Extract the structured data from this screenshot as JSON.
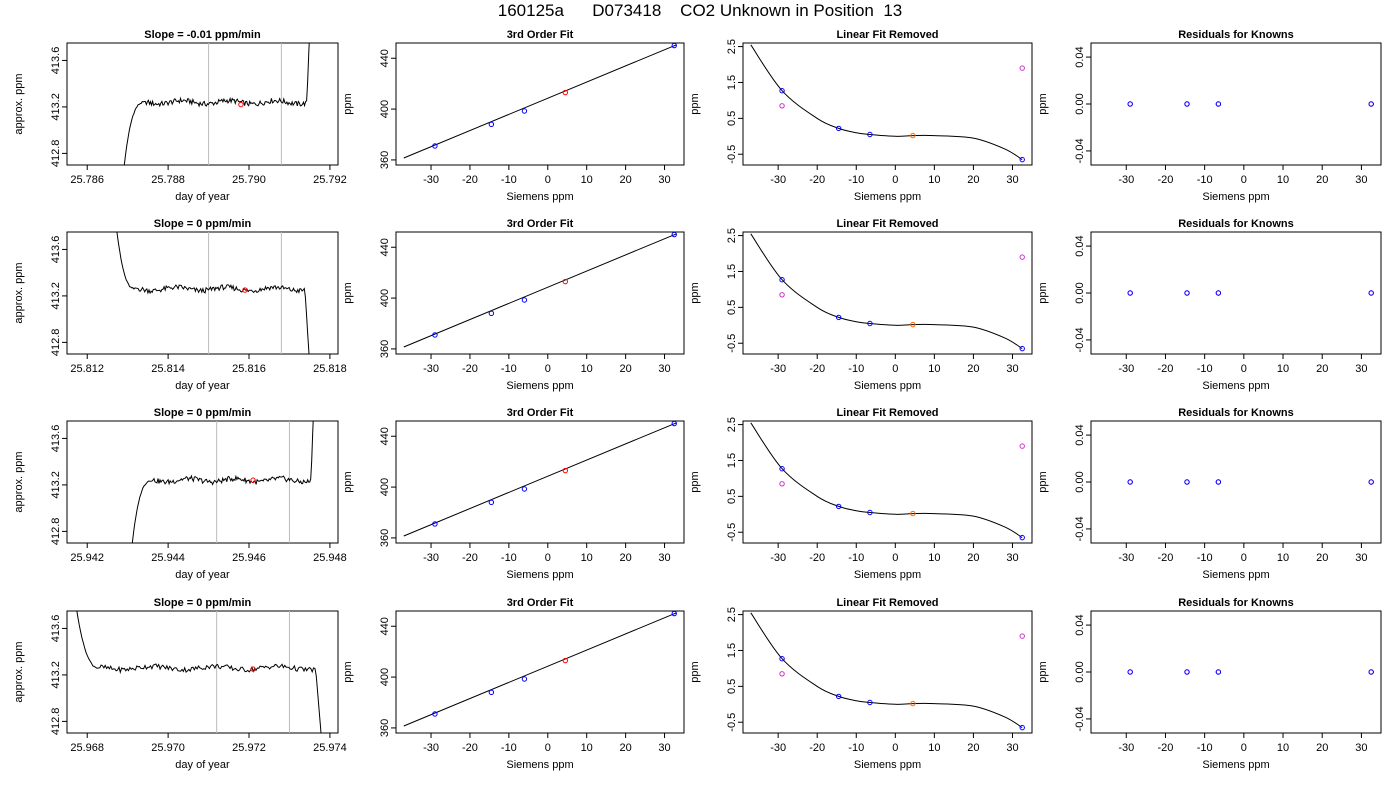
{
  "suptitle": "160125a      D073418    CO2 Unknown in Position  13",
  "colors": {
    "curve": "#000000",
    "known_point": "#0000ff",
    "unknown_point": "#ff0000",
    "unknown_point_lfr": "#ff6600",
    "residual_raw": "#cc33cc",
    "ref_line": "#bbbbbb"
  },
  "chart_data": [
    {
      "type": "line",
      "row": 1,
      "plot": "trace",
      "title": "Slope =  -0.01  ppm/min",
      "xlabel": "day of year",
      "ylabel": "approx. ppm",
      "xlim": [
        25.7855,
        25.7922
      ],
      "ylim": [
        412.7,
        413.75
      ],
      "xticks": [
        25.786,
        25.788,
        25.79,
        25.792
      ],
      "xtick_labels": [
        "25.786",
        "25.788",
        "25.790",
        "25.792"
      ],
      "yticks": [
        412.8,
        413.2,
        413.6
      ],
      "ytick_labels": [
        "412.8",
        "413.2",
        "413.6"
      ],
      "vlines": [
        25.789,
        25.7908
      ],
      "marker": {
        "x": 25.7898,
        "y": 413.22
      },
      "shape": "rise",
      "x_start": 25.7869,
      "x_end": 25.7915,
      "plateau": 413.24
    },
    {
      "type": "line",
      "row": 2,
      "plot": "trace",
      "title": "Slope =  0  ppm/min",
      "xlabel": "day of year",
      "ylabel": "approx. ppm",
      "xlim": [
        25.8115,
        25.8182
      ],
      "ylim": [
        412.7,
        413.75
      ],
      "xticks": [
        25.812,
        25.814,
        25.816,
        25.818
      ],
      "xtick_labels": [
        "25.812",
        "25.814",
        "25.816",
        "25.818"
      ],
      "yticks": [
        412.8,
        413.2,
        413.6
      ],
      "ytick_labels": [
        "412.8",
        "413.2",
        "413.6"
      ],
      "vlines": [
        25.815,
        25.8168
      ],
      "marker": {
        "x": 25.8159,
        "y": 413.25
      },
      "shape": "fall",
      "x_start": 25.8127,
      "x_end": 25.8175,
      "plateau": 413.26
    },
    {
      "type": "line",
      "row": 3,
      "plot": "trace",
      "title": "Slope =  0  ppm/min",
      "xlabel": "day of year",
      "ylabel": "approx. ppm",
      "xlim": [
        25.9415,
        25.9482
      ],
      "ylim": [
        412.7,
        413.75
      ],
      "xticks": [
        25.942,
        25.944,
        25.946,
        25.948
      ],
      "xtick_labels": [
        "25.942",
        "25.944",
        "25.946",
        "25.948"
      ],
      "yticks": [
        412.8,
        413.2,
        413.6
      ],
      "ytick_labels": [
        "412.8",
        "413.2",
        "413.6"
      ],
      "vlines": [
        25.9452,
        25.947
      ],
      "marker": {
        "x": 25.9461,
        "y": 413.24
      },
      "shape": "rise",
      "x_start": 25.9431,
      "x_end": 25.9476,
      "plateau": 413.24
    },
    {
      "type": "line",
      "row": 4,
      "plot": "trace",
      "title": "Slope =  0  ppm/min",
      "xlabel": "day of year",
      "ylabel": "approx. ppm",
      "xlim": [
        25.9675,
        25.9742
      ],
      "ylim": [
        412.7,
        413.75
      ],
      "xticks": [
        25.968,
        25.97,
        25.972,
        25.974
      ],
      "xtick_labels": [
        "25.968",
        "25.970",
        "25.972",
        "25.974"
      ],
      "yticks": [
        412.8,
        413.2,
        413.6
      ],
      "ytick_labels": [
        "412.8",
        "413.2",
        "413.6"
      ],
      "vlines": [
        25.9712,
        25.973
      ],
      "marker": {
        "x": 25.9721,
        "y": 413.25
      },
      "shape": "fall",
      "x_start": 25.9677,
      "x_end": 25.9738,
      "plateau": 413.26
    },
    {
      "type": "scatter",
      "plot": "fit",
      "title": "3rd Order Fit",
      "xlabel": "Siemens ppm",
      "ylabel": "ppm",
      "xlim": [
        -39,
        35
      ],
      "ylim": [
        356,
        452
      ],
      "xticks": [
        -30,
        -20,
        -10,
        0,
        10,
        20,
        30
      ],
      "xtick_labels": [
        "-30",
        "-20",
        "-10",
        "0",
        "10",
        "20",
        "30"
      ],
      "yticks": [
        360,
        400,
        440
      ],
      "ytick_labels": [
        "360",
        "400",
        "440"
      ],
      "known_points": [
        {
          "x": -29,
          "y": 371
        },
        {
          "x": -14.5,
          "y": 388
        },
        {
          "x": -6,
          "y": 398.5
        },
        {
          "x": 32.5,
          "y": 450
        }
      ],
      "unknown_points": [
        {
          "x": 4.5,
          "y": 413
        }
      ],
      "fit_line": {
        "x": [
          -37,
          33
        ],
        "y": [
          361.5,
          450.5
        ]
      }
    },
    {
      "type": "scatter",
      "plot": "linfit_removed",
      "title": "Linear Fit Removed",
      "xlabel": "Siemens ppm",
      "ylabel": "ppm",
      "xlim": [
        -39,
        35
      ],
      "ylim": [
        -0.8,
        2.6
      ],
      "xticks": [
        -30,
        -20,
        -10,
        0,
        10,
        20,
        30
      ],
      "xtick_labels": [
        "-30",
        "-20",
        "-10",
        "0",
        "10",
        "20",
        "30"
      ],
      "yticks": [
        -0.5,
        0.5,
        1.5,
        2.5
      ],
      "ytick_labels": [
        "-0.5",
        "0.5",
        "1.5",
        "2.5"
      ],
      "known_points": [
        {
          "x": -29,
          "y": 1.27
        },
        {
          "x": -14.5,
          "y": 0.22
        },
        {
          "x": -6.5,
          "y": 0.05
        },
        {
          "x": 32.5,
          "y": -0.65
        }
      ],
      "raw_points": [
        {
          "x": -29,
          "y": 0.85
        },
        {
          "x": 32.5,
          "y": 1.9
        }
      ],
      "unknown_points": [
        {
          "x": 4.5,
          "y": 0.02
        }
      ],
      "curve": {
        "x": [
          -37,
          -29,
          -20,
          -14.5,
          -10,
          -6.5,
          0,
          4.5,
          10,
          20,
          28,
          32.5
        ],
        "y": [
          2.55,
          1.27,
          0.5,
          0.22,
          0.1,
          0.05,
          0.0,
          0.02,
          0.02,
          -0.05,
          -0.35,
          -0.65
        ]
      }
    },
    {
      "type": "scatter",
      "plot": "residuals",
      "title": "Residuals for Knowns",
      "xlabel": "Siemens ppm",
      "ylabel": "ppm",
      "xlim": [
        -39,
        35
      ],
      "ylim": [
        -0.052,
        0.052
      ],
      "xticks": [
        -30,
        -20,
        -10,
        0,
        10,
        20,
        30
      ],
      "xtick_labels": [
        "-30",
        "-20",
        "-10",
        "0",
        "10",
        "20",
        "30"
      ],
      "yticks": [
        -0.04,
        0.0,
        0.04
      ],
      "ytick_labels": [
        "-0.04",
        "0.00",
        "0.04"
      ],
      "points": [
        {
          "x": -29,
          "y": 0.0
        },
        {
          "x": -14.5,
          "y": 0.0
        },
        {
          "x": -6.5,
          "y": 0.0
        },
        {
          "x": 32.5,
          "y": 0.0
        }
      ]
    }
  ]
}
